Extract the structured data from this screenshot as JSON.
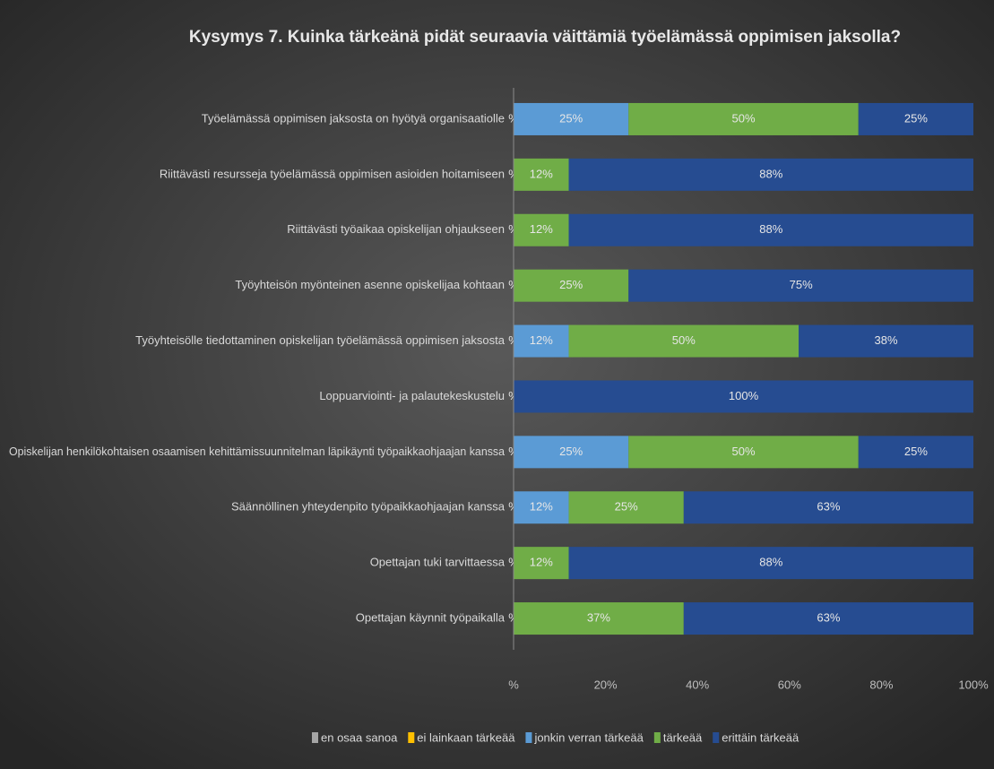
{
  "chart_data": {
    "type": "stacked_barh",
    "title": "Kysymys 7. Kuinka tärkeänä pidät seuraavia väittämiä työelämässä oppimisen jaksolla?",
    "categories": [
      "Työelämässä oppimisen jaksosta on hyötyä organisaatiolle",
      "Riittävästi resursseja työelämässä oppimisen asioiden hoitamiseen",
      "Riittävästi työaikaa opiskelijan ohjaukseen",
      "Työyhteisön myönteinen asenne opiskelijaa kohtaan",
      "Työyhteisölle tiedottaminen opiskelijan työelämässä oppimisen jaksosta",
      "Loppuarviointi- ja palautekeskustelu",
      "Opiskelijan henkilökohtaisen osaamisen kehittämissuunnitelman läpikäynti työpaikkaohjaajan kanssa",
      "Säännöllinen yhteydenpito työpaikkaohjaajan kanssa",
      "Opettajan tuki tarvittaessa",
      "Opettajan käynnit työpaikalla"
    ],
    "series": [
      {
        "name": "en osaa sanoa",
        "color": "#a5a5a5",
        "values": [
          0,
          0,
          0,
          0,
          0,
          0,
          0,
          0,
          0,
          0
        ],
        "value_labels": [
          "%",
          "%",
          "%",
          "%",
          "%",
          "%",
          "%",
          "%",
          "%",
          "%"
        ]
      },
      {
        "name": "ei lainkaan tärkeää",
        "color": "#ffc000",
        "values": [
          0,
          0,
          0,
          0,
          0,
          0,
          0,
          0,
          0,
          0
        ]
      },
      {
        "name": "jonkin verran tärkeää",
        "color": "#5b9bd5",
        "values": [
          25,
          0,
          0,
          0,
          12,
          0,
          25,
          12,
          0,
          0
        ],
        "value_labels": [
          "25%",
          null,
          null,
          null,
          "12%",
          null,
          "25%",
          "12%",
          null,
          null
        ]
      },
      {
        "name": "tärkeää",
        "color": "#70ad47",
        "values": [
          50,
          12,
          12,
          25,
          50,
          0,
          50,
          25,
          12,
          37
        ],
        "value_labels": [
          "50%",
          "12%",
          "12%",
          "25%",
          "50%",
          null,
          "50%",
          "25%",
          "12%",
          "37%"
        ]
      },
      {
        "name": "erittäin tärkeää",
        "color": "#264c91",
        "values": [
          25,
          88,
          88,
          75,
          38,
          100,
          25,
          63,
          88,
          63
        ],
        "value_labels": [
          "25%",
          "88%",
          "88%",
          "75%",
          "38%",
          "100%",
          "25%",
          "63%",
          "88%",
          "63%"
        ]
      }
    ],
    "xlim": [
      0,
      100
    ],
    "xticks": [
      {
        "value": 0,
        "label": "%"
      },
      {
        "value": 20,
        "label": "20%"
      },
      {
        "value": 40,
        "label": "40%"
      },
      {
        "value": 60,
        "label": "60%"
      },
      {
        "value": 80,
        "label": "80%"
      },
      {
        "value": 100,
        "label": "100%"
      }
    ],
    "grid": false,
    "legend": "bottom"
  }
}
